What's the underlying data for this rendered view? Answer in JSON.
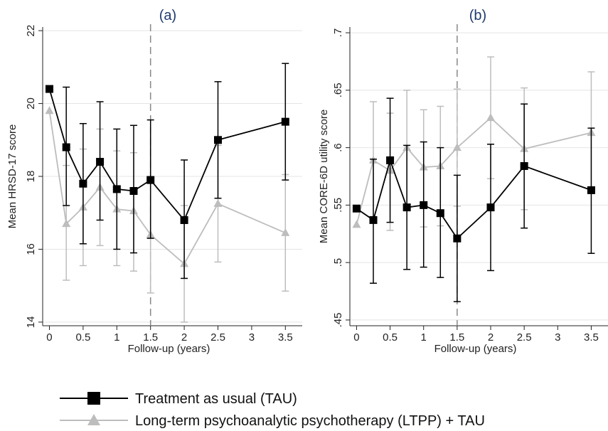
{
  "colors": {
    "tau": "#000000",
    "ltpp": "#bdbdbd",
    "grid": "#e4e4e4",
    "marker_line": "#888888",
    "title": "#1f3a6e"
  },
  "chart_data": [
    {
      "type": "line",
      "title": "(a)",
      "xlabel": "Follow-up (years)",
      "ylabel": "Mean HRSD-17 score",
      "xlim": [
        -0.1,
        3.75
      ],
      "ylim": [
        13.9,
        22.1
      ],
      "xticks": [
        0,
        0.5,
        1,
        1.5,
        2,
        2.5,
        3,
        3.5
      ],
      "xtick_labels": [
        "0",
        "0.5",
        "1",
        "1.5",
        "2",
        "2.5",
        "3",
        "3.5"
      ],
      "yticks": [
        14,
        16,
        18,
        20,
        22
      ],
      "ytick_labels": [
        "14",
        "16",
        "18",
        "20",
        "22"
      ],
      "grid": true,
      "vline_x": 1.5,
      "series": [
        {
          "name": "Treatment as usual (TAU)",
          "marker": "square",
          "x": [
            0,
            0.25,
            0.5,
            0.75,
            1,
            1.25,
            1.5,
            2,
            2.5,
            3.5
          ],
          "y": [
            20.4,
            18.8,
            17.8,
            18.4,
            17.65,
            17.6,
            17.9,
            16.8,
            19.0,
            19.5
          ],
          "lo": [
            null,
            17.2,
            16.15,
            16.8,
            16.0,
            15.9,
            16.3,
            15.2,
            17.4,
            17.9
          ],
          "hi": [
            null,
            20.45,
            19.45,
            20.05,
            19.3,
            19.4,
            19.55,
            18.45,
            20.6,
            21.1
          ]
        },
        {
          "name": "Long-term psychoanalytic psychotherapy (LTPP) + TAU",
          "marker": "triangle",
          "x": [
            0,
            0.25,
            0.5,
            0.75,
            1,
            1.25,
            1.5,
            2,
            2.5,
            3.5
          ],
          "y": [
            19.8,
            16.7,
            17.15,
            17.7,
            17.1,
            17.05,
            16.4,
            15.6,
            17.25,
            16.45
          ],
          "lo": [
            null,
            15.15,
            15.55,
            16.1,
            15.55,
            15.4,
            14.8,
            14.0,
            15.65,
            14.85
          ],
          "hi": [
            null,
            18.3,
            18.75,
            19.3,
            18.7,
            18.65,
            18.0,
            17.2,
            18.85,
            18.05
          ]
        }
      ]
    },
    {
      "type": "line",
      "title": "(b)",
      "xlabel": "Follow-up (years)",
      "ylabel": "Mean CORE-6D utility score",
      "xlim": [
        -0.1,
        3.75
      ],
      "ylim": [
        0.445,
        0.705
      ],
      "xticks": [
        0,
        0.5,
        1,
        1.5,
        2,
        2.5,
        3,
        3.5
      ],
      "xtick_labels": [
        "0",
        "0.5",
        "1",
        "1.5",
        "2",
        "2.5",
        "3",
        "3.5"
      ],
      "yticks": [
        0.45,
        0.5,
        0.55,
        0.6,
        0.65,
        0.7
      ],
      "ytick_labels": [
        ".45",
        ".5",
        ".55",
        ".6",
        ".65",
        ".7"
      ],
      "grid": true,
      "vline_x": 1.5,
      "series": [
        {
          "name": "Treatment as usual (TAU)",
          "marker": "square",
          "x": [
            0,
            0.25,
            0.5,
            0.75,
            1,
            1.25,
            1.5,
            2,
            2.5,
            3.5
          ],
          "y": [
            0.547,
            0.537,
            0.589,
            0.548,
            0.55,
            0.543,
            0.521,
            0.548,
            0.584,
            0.563
          ],
          "lo": [
            null,
            0.482,
            0.535,
            0.494,
            0.496,
            0.487,
            0.466,
            0.493,
            0.53,
            0.508
          ],
          "hi": [
            null,
            0.59,
            0.643,
            0.602,
            0.605,
            0.6,
            0.576,
            0.603,
            0.638,
            0.617
          ]
        },
        {
          "name": "Long-term psychoanalytic psychotherapy (LTPP) + TAU",
          "marker": "triangle",
          "x": [
            0,
            0.25,
            0.5,
            0.75,
            1,
            1.25,
            1.5,
            2,
            2.5,
            3.5
          ],
          "y": [
            0.533,
            0.589,
            0.58,
            0.6,
            0.583,
            0.584,
            0.6,
            0.626,
            0.599,
            0.613
          ],
          "lo": [
            null,
            0.538,
            0.528,
            0.548,
            0.531,
            0.532,
            0.549,
            0.573,
            0.546,
            0.56
          ],
          "hi": [
            null,
            0.64,
            0.63,
            0.65,
            0.633,
            0.636,
            0.651,
            0.679,
            0.652,
            0.666
          ]
        }
      ]
    }
  ],
  "legend": {
    "items": [
      {
        "label": "Treatment as usual (TAU)",
        "marker": "square"
      },
      {
        "label": "Long-term psychoanalytic psychotherapy (LTPP) + TAU",
        "marker": "triangle"
      }
    ]
  }
}
